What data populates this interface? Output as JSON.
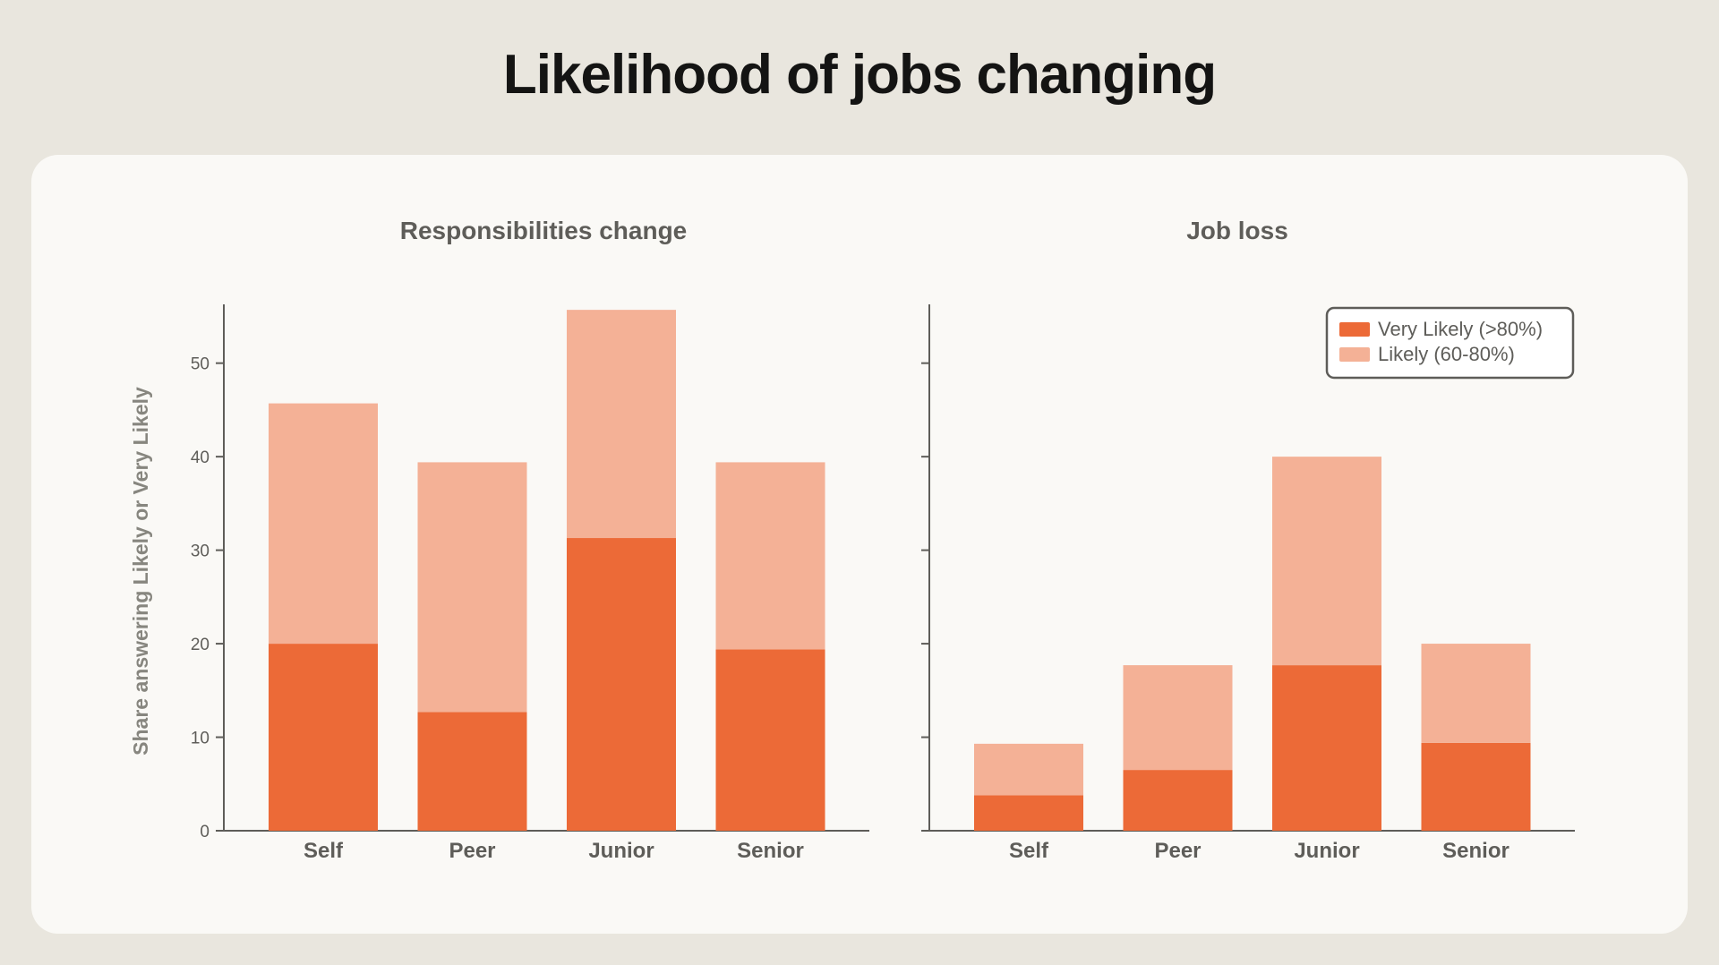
{
  "page": {
    "title": "Likelihood of jobs changing"
  },
  "colors": {
    "very_likely": "#ec6a37",
    "likely": "#f4b196",
    "axis": "#5e5d59",
    "card": "#faf9f6",
    "background": "#e9e6de"
  },
  "chart_data": [
    {
      "type": "bar",
      "stacked": true,
      "title": "Responsibilities change",
      "ylabel": "Share answering Likely or Very Likely",
      "categories": [
        "Self",
        "Peer",
        "Junior",
        "Senior"
      ],
      "series": [
        {
          "name": "Very Likely (>80%)",
          "values": [
            20,
            12.7,
            31.3,
            19.4
          ]
        },
        {
          "name": "Likely (60-80%)",
          "values": [
            25.7,
            26.7,
            24.4,
            20
          ]
        }
      ],
      "ylim": [
        0,
        56
      ],
      "yticks": [
        "0",
        "10",
        "20",
        "30",
        "40",
        "50"
      ],
      "grid": false,
      "legend": false
    },
    {
      "type": "bar",
      "stacked": true,
      "title": "Job loss",
      "ylabel": "",
      "categories": [
        "Self",
        "Peer",
        "Junior",
        "Senior"
      ],
      "series": [
        {
          "name": "Very Likely (>80%)",
          "values": [
            3.8,
            6.5,
            17.7,
            9.4
          ]
        },
        {
          "name": "Likely (60-80%)",
          "values": [
            5.5,
            11.2,
            22.3,
            10.6
          ]
        }
      ],
      "ylim": [
        0,
        56
      ],
      "grid": false,
      "legend": true,
      "legend_position": "top-right"
    }
  ]
}
